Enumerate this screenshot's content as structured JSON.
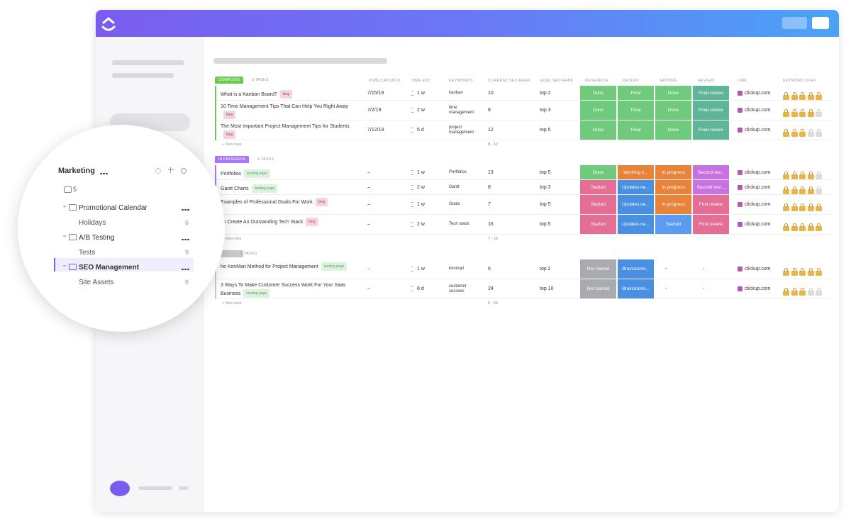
{
  "sidebar": {
    "title": "Marketing",
    "comment_count": "5",
    "folders": [
      {
        "name": "Promotional Calendar",
        "lists": [
          {
            "name": "Holidays",
            "count": 6
          }
        ]
      },
      {
        "name": "A/B Testing",
        "lists": [
          {
            "name": "Tests",
            "count": 9
          }
        ]
      },
      {
        "name": "SEO Management",
        "selected": true,
        "lists": [
          {
            "name": "Site Assets",
            "count": 6
          }
        ]
      }
    ]
  },
  "table": {
    "columns": [
      "PUBLICATION D",
      "TIME EST",
      "KEYWORDS",
      "CURRENT SEO RANK",
      "GOAL SEO RANK",
      "RESEARCH",
      "DESIGN",
      "EDITING",
      "REVIEW",
      "LINK",
      "KEYWORD DIFFI"
    ],
    "groups": [
      {
        "status": "COMPLETE",
        "status_color": "#6bc950",
        "count": "3 TASKS",
        "new_task": "+ New task",
        "rank_range": "8 - 12",
        "rows": [
          {
            "name": "What is a Kanban Board?",
            "tag": "blog",
            "publication": "7/15/19",
            "time": "1 w",
            "keywords": "kanban",
            "current_rank": 10,
            "goal_rank": "top 2",
            "cells": [
              {
                "text": "Done",
                "color": "#6fca7c"
              },
              {
                "text": "Final",
                "color": "#6fca7c"
              },
              {
                "text": "Done",
                "color": "#6fca7c"
              },
              {
                "text": "Final review",
                "color": "#5fb598"
              }
            ],
            "link": "clickup.com",
            "difficulty": 5
          },
          {
            "name": "10 Time Management Tips That Can Help You Right Away",
            "tag": "blog",
            "publication": "7/2/19",
            "time": "2 w",
            "keywords": "time management",
            "current_rank": 8,
            "goal_rank": "top 3",
            "cells": [
              {
                "text": "Done",
                "color": "#6fca7c"
              },
              {
                "text": "Final",
                "color": "#6fca7c"
              },
              {
                "text": "Done",
                "color": "#6fca7c"
              },
              {
                "text": "Final review",
                "color": "#5fb598"
              }
            ],
            "link": "clickup.com",
            "difficulty": 4
          },
          {
            "name": "The Most Important Project Management Tips for Students",
            "tag": "blog",
            "publication": "7/12/19",
            "time": "5 d",
            "keywords": "project management",
            "current_rank": 12,
            "goal_rank": "top 5",
            "cells": [
              {
                "text": "Done",
                "color": "#6fca7c"
              },
              {
                "text": "Final",
                "color": "#6fca7c"
              },
              {
                "text": "Done",
                "color": "#6fca7c"
              },
              {
                "text": "Final review",
                "color": "#5fb598"
              }
            ],
            "link": "clickup.com",
            "difficulty": 3
          }
        ]
      },
      {
        "status": "IN PROGRESS",
        "status_color": "#a875ff",
        "count": "4 TASKS",
        "new_task": "+ New task",
        "rank_range": "7 - 16",
        "rows": [
          {
            "name": "Portfolios",
            "tag": "landing page",
            "publication": "–",
            "time": "1 w",
            "keywords": "Portfolios",
            "current_rank": 13,
            "goal_rank": "top 5",
            "cells": [
              {
                "text": "Done",
                "color": "#6fca7c"
              },
              {
                "text": "Working o...",
                "color": "#e8833a"
              },
              {
                "text": "In progress",
                "color": "#e8833a"
              },
              {
                "text": "Second rev...",
                "color": "#c871e0"
              }
            ],
            "link": "clickup.com",
            "difficulty": 4
          },
          {
            "name": "Gantt Charts",
            "tag": "landing page",
            "publication": "–",
            "time": "2 w",
            "keywords": "Gantt",
            "current_rank": 8,
            "goal_rank": "top 3",
            "cells": [
              {
                "text": "Started",
                "color": "#e56f94"
              },
              {
                "text": "Updates ne...",
                "color": "#4a90e2"
              },
              {
                "text": "In progress",
                "color": "#e8833a"
              },
              {
                "text": "Second revi...",
                "color": "#c871e0"
              }
            ],
            "link": "clickup.com",
            "difficulty": 4
          },
          {
            "name": "Examples of Professional Goals For Work",
            "tag": "blog",
            "publication": "–",
            "time": "1 w",
            "keywords": "Goals",
            "current_rank": 7,
            "goal_rank": "top 5",
            "cells": [
              {
                "text": "Started",
                "color": "#e56f94"
              },
              {
                "text": "Updates ne...",
                "color": "#4a90e2"
              },
              {
                "text": "In progress",
                "color": "#e8833a"
              },
              {
                "text": "First review",
                "color": "#e56f94"
              }
            ],
            "link": "clickup.com",
            "difficulty": 5
          },
          {
            "name": "To Create An Outstanding Tech Stack",
            "tag": "blog",
            "publication": "–",
            "time": "2 w",
            "keywords": "Tech stack",
            "current_rank": 16,
            "goal_rank": "top 5",
            "cells": [
              {
                "text": "Started",
                "color": "#e56f94"
              },
              {
                "text": "Updates ne...",
                "color": "#4a90e2"
              },
              {
                "text": "Started",
                "color": "#5b9cf0"
              },
              {
                "text": "First review",
                "color": "#e56f94"
              }
            ],
            "link": "clickup.com",
            "difficulty": 5
          }
        ]
      },
      {
        "status_color": "#c9c9c9",
        "count": "2 TASKS",
        "new_task": "+ New task",
        "rank_range": "6 - 24",
        "rows": [
          {
            "name": "he KonMari Method for Project Management",
            "tag": "landing page",
            "publication": "–",
            "time": "1 w",
            "keywords": "konmari",
            "current_rank": 6,
            "goal_rank": "top 2",
            "cells": [
              {
                "text": "Not started",
                "color": "#a9abae"
              },
              {
                "text": "Brainstormi...",
                "color": "#4a90e2"
              },
              {
                "text": "-"
              },
              {
                "text": "-"
              }
            ],
            "link": "clickup.com",
            "difficulty": 5
          },
          {
            "name": "3 Ways To Make Customer Success Work For Your Saas Business",
            "tag": "landing page",
            "publication": "–",
            "time": "8 d",
            "keywords": "customer success",
            "current_rank": 24,
            "goal_rank": "top 10",
            "cells": [
              {
                "text": "Not started",
                "color": "#a9abae"
              },
              {
                "text": "Brainstormi...",
                "color": "#4a90e2"
              },
              {
                "text": "-"
              },
              {
                "text": "-"
              }
            ],
            "link": "clickup.com",
            "difficulty": 3
          }
        ]
      }
    ]
  }
}
